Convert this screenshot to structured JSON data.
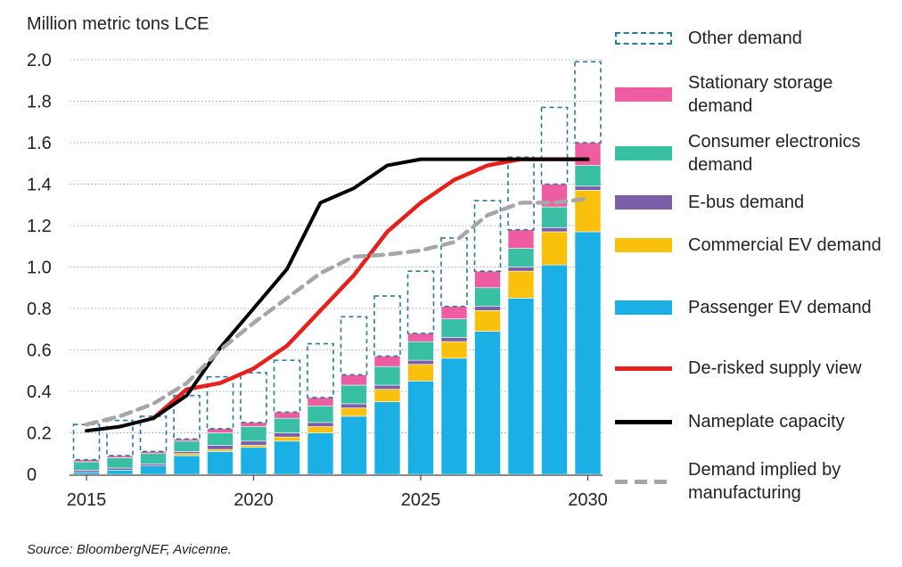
{
  "y_unit_label": "Million metric tons LCE",
  "source": "Source: BloombergNEF, Avicenne.",
  "legend": [
    {
      "key": "other",
      "label": "Other demand",
      "style": "dashed-box",
      "color": "#2a7a9a"
    },
    {
      "key": "stationary",
      "label": "Stationary storage demand",
      "style": "fill",
      "color": "#ee5da2"
    },
    {
      "key": "consumer",
      "label": "Consumer electronics demand",
      "style": "fill",
      "color": "#39bfa3"
    },
    {
      "key": "ebus",
      "label": "E-bus demand",
      "style": "fill",
      "color": "#7b5ea7"
    },
    {
      "key": "commercial",
      "label": "Commercial EV demand",
      "style": "fill",
      "color": "#f9c00c"
    },
    {
      "key": "passenger",
      "label": "Passenger EV demand",
      "style": "fill",
      "color": "#1ab0e6"
    },
    {
      "key": "derisked",
      "label": "De-risked supply view",
      "style": "line",
      "color": "#e8201d"
    },
    {
      "key": "nameplate",
      "label": "Nameplate capacity",
      "style": "line",
      "color": "#000000"
    },
    {
      "key": "implied",
      "label": "Demand implied by manufacturing",
      "style": "dashed-line",
      "color": "#a6a6a6"
    }
  ],
  "chart_data": {
    "type": "bar",
    "subtype": "stacked bar with line overlays",
    "ylabel": "Million metric tons LCE",
    "ylim": [
      0,
      2.0
    ],
    "yticks": [
      0,
      0.2,
      0.4,
      0.6,
      0.8,
      1.0,
      1.2,
      1.4,
      1.6,
      1.8,
      2.0
    ],
    "ytick_labels": [
      "0",
      "0.2",
      "0.4",
      "0.6",
      "0.8",
      "1.0",
      "1.2",
      "1.4",
      "1.6",
      "1.8",
      "2.0"
    ],
    "xticks": [
      2015,
      2020,
      2025,
      2030
    ],
    "xtick_labels": [
      "2015",
      "2020",
      "2025",
      "2030"
    ],
    "grid": true,
    "legend_position": "right",
    "categories": [
      2015,
      2016,
      2017,
      2018,
      2019,
      2020,
      2021,
      2022,
      2023,
      2024,
      2025,
      2026,
      2027,
      2028,
      2029,
      2030
    ],
    "stacked_series": [
      {
        "name": "Passenger EV demand",
        "key": "passenger",
        "values": [
          0.01,
          0.02,
          0.04,
          0.09,
          0.11,
          0.13,
          0.16,
          0.2,
          0.28,
          0.35,
          0.45,
          0.56,
          0.69,
          0.85,
          1.01,
          1.17
        ]
      },
      {
        "name": "Commercial EV demand",
        "key": "commercial",
        "values": [
          0.0,
          0.0,
          0.0,
          0.01,
          0.01,
          0.01,
          0.02,
          0.03,
          0.04,
          0.06,
          0.08,
          0.08,
          0.1,
          0.13,
          0.16,
          0.2
        ]
      },
      {
        "name": "E-bus demand",
        "key": "ebus",
        "values": [
          0.01,
          0.01,
          0.01,
          0.01,
          0.02,
          0.02,
          0.02,
          0.02,
          0.02,
          0.02,
          0.02,
          0.02,
          0.02,
          0.02,
          0.02,
          0.02
        ]
      },
      {
        "name": "Consumer electronics demand",
        "key": "consumer",
        "values": [
          0.04,
          0.05,
          0.05,
          0.05,
          0.06,
          0.07,
          0.07,
          0.08,
          0.09,
          0.09,
          0.09,
          0.09,
          0.09,
          0.09,
          0.1,
          0.1
        ]
      },
      {
        "name": "Stationary storage demand",
        "key": "stationary",
        "values": [
          0.01,
          0.01,
          0.01,
          0.01,
          0.02,
          0.02,
          0.03,
          0.04,
          0.05,
          0.05,
          0.04,
          0.06,
          0.08,
          0.09,
          0.11,
          0.11
        ]
      },
      {
        "name": "Other demand",
        "key": "other",
        "values": [
          0.17,
          0.17,
          0.17,
          0.21,
          0.25,
          0.24,
          0.25,
          0.26,
          0.28,
          0.29,
          0.3,
          0.33,
          0.34,
          0.35,
          0.37,
          0.39
        ]
      }
    ],
    "line_series": [
      {
        "name": "De-risked supply view",
        "key": "derisked",
        "x": [
          2017,
          2018,
          2019,
          2020,
          2021,
          2022,
          2023,
          2024,
          2025,
          2026,
          2027,
          2028,
          2029,
          2030
        ],
        "y": [
          0.27,
          0.41,
          0.44,
          0.51,
          0.62,
          0.79,
          0.96,
          1.17,
          1.31,
          1.42,
          1.49,
          1.52,
          1.52,
          1.52
        ]
      },
      {
        "name": "Nameplate capacity",
        "key": "nameplate",
        "x": [
          2015,
          2016,
          2017,
          2018,
          2019,
          2020,
          2021,
          2022,
          2023,
          2024,
          2025,
          2026,
          2027,
          2028,
          2029,
          2030
        ],
        "y": [
          0.21,
          0.23,
          0.27,
          0.38,
          0.61,
          0.8,
          0.99,
          1.31,
          1.38,
          1.49,
          1.52,
          1.52,
          1.52,
          1.52,
          1.52,
          1.52
        ]
      },
      {
        "name": "Demand implied by manufacturing",
        "key": "implied",
        "x": [
          2015,
          2016,
          2017,
          2018,
          2019,
          2020,
          2021,
          2022,
          2023,
          2024,
          2025,
          2026,
          2027,
          2028,
          2029,
          2030
        ],
        "y": [
          0.24,
          0.28,
          0.34,
          0.44,
          0.6,
          0.73,
          0.85,
          0.97,
          1.05,
          1.06,
          1.08,
          1.12,
          1.25,
          1.31,
          1.31,
          1.33
        ]
      }
    ]
  }
}
